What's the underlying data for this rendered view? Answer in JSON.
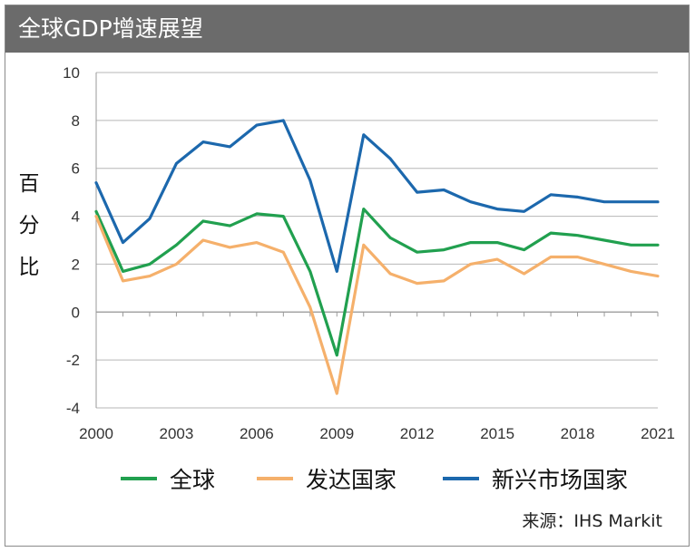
{
  "header": {
    "title": "全球GDP增速展望"
  },
  "source": "来源：IHS Markit",
  "colors": {
    "global": "#21a04f",
    "developed": "#f5b06b",
    "emerging": "#1c68ad",
    "grid": "#b7b7b7",
    "title_bg": "#6b6b6b"
  },
  "chart_data": {
    "type": "line",
    "title": "全球GDP增速展望",
    "ylabel": "百分比",
    "xlabel": "",
    "ylim": [
      -4,
      10
    ],
    "yticks": [
      10,
      8,
      6,
      4,
      2,
      0,
      -2,
      -4
    ],
    "xlim": [
      2000,
      2021
    ],
    "xtick_labels": [
      "2000",
      "2003",
      "2006",
      "2009",
      "2012",
      "2015",
      "2018",
      "2021"
    ],
    "x": [
      2000,
      2001,
      2002,
      2003,
      2004,
      2005,
      2006,
      2007,
      2008,
      2009,
      2010,
      2011,
      2012,
      2013,
      2014,
      2015,
      2016,
      2017,
      2018,
      2019,
      2020,
      2021
    ],
    "grid": true,
    "legend_position": "bottom",
    "series": [
      {
        "name": "全球",
        "key": "global",
        "values": [
          4.2,
          1.7,
          2.0,
          2.8,
          3.8,
          3.6,
          4.1,
          4.0,
          1.7,
          -1.8,
          4.3,
          3.1,
          2.5,
          2.6,
          2.9,
          2.9,
          2.6,
          3.3,
          3.2,
          3.0,
          2.8,
          2.8
        ]
      },
      {
        "name": "发达国家",
        "key": "developed",
        "values": [
          4.0,
          1.3,
          1.5,
          2.0,
          3.0,
          2.7,
          2.9,
          2.5,
          0.2,
          -3.4,
          2.8,
          1.6,
          1.2,
          1.3,
          2.0,
          2.2,
          1.6,
          2.3,
          2.3,
          2.0,
          1.7,
          1.5
        ]
      },
      {
        "name": "新兴市场国家",
        "key": "emerging",
        "values": [
          5.4,
          2.9,
          3.9,
          6.2,
          7.1,
          6.9,
          7.8,
          8.0,
          5.5,
          1.7,
          7.4,
          6.4,
          5.0,
          5.1,
          4.6,
          4.3,
          4.2,
          4.9,
          4.8,
          4.6,
          4.6,
          4.6
        ]
      }
    ]
  }
}
